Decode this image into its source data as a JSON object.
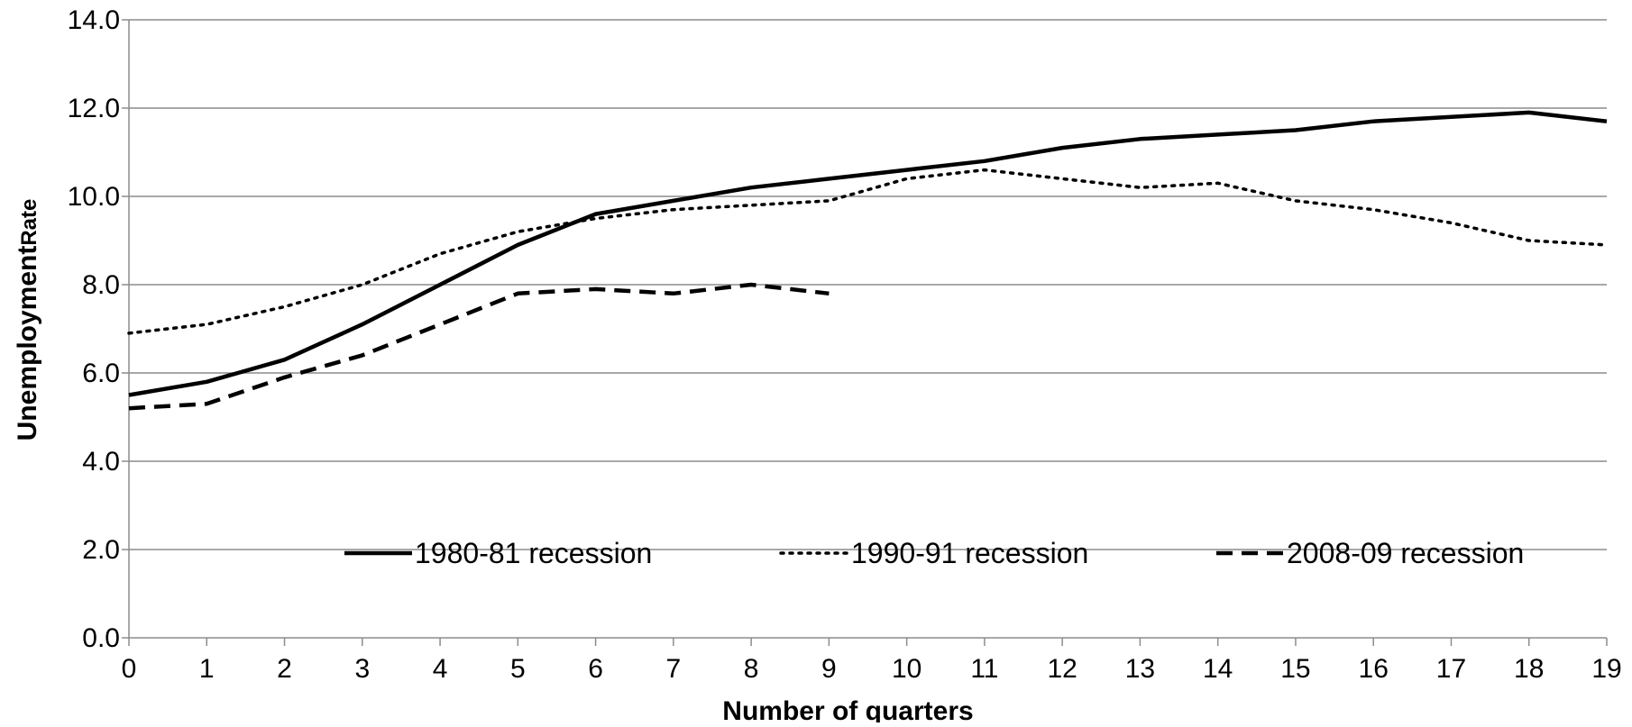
{
  "chart_data": {
    "type": "line",
    "title": "",
    "xlabel": "Number of quarters",
    "ylabel_main": "Unemployment",
    "ylabel_suffix": "Rate",
    "x": [
      0,
      1,
      2,
      3,
      4,
      5,
      6,
      7,
      8,
      9,
      10,
      11,
      12,
      13,
      14,
      15,
      16,
      17,
      18,
      19
    ],
    "ylim": [
      0,
      14
    ],
    "yticks": [
      "0.0",
      "2.0",
      "4.0",
      "6.0",
      "8.0",
      "10.0",
      "12.0",
      "14.0"
    ],
    "xticks": [
      "0",
      "1",
      "2",
      "3",
      "4",
      "5",
      "6",
      "7",
      "8",
      "9",
      "10",
      "11",
      "12",
      "13",
      "14",
      "15",
      "16",
      "17",
      "18",
      "19"
    ],
    "grid": true,
    "legend": "inside-bottom",
    "series": [
      {
        "name": "1980-81 recession",
        "style": "solid",
        "color": "#000000",
        "values": [
          5.5,
          5.8,
          6.3,
          7.1,
          8.0,
          8.9,
          9.6,
          9.9,
          10.2,
          10.4,
          10.6,
          10.8,
          11.1,
          11.3,
          11.4,
          11.5,
          11.7,
          11.8,
          11.9,
          11.7
        ]
      },
      {
        "name": "1990-91 recession",
        "style": "dotted",
        "color": "#000000",
        "values": [
          6.9,
          7.1,
          7.5,
          8.0,
          8.7,
          9.2,
          9.5,
          9.7,
          9.8,
          9.9,
          10.4,
          10.6,
          10.4,
          10.2,
          10.3,
          9.9,
          9.7,
          9.4,
          9.0,
          8.9
        ]
      },
      {
        "name": "2008-09 recession",
        "style": "dashed",
        "color": "#000000",
        "values": [
          5.2,
          5.3,
          5.9,
          6.4,
          7.1,
          7.8,
          7.9,
          7.8,
          8.0,
          7.8,
          null,
          null,
          null,
          null,
          null,
          null,
          null,
          null,
          null,
          null
        ]
      }
    ]
  }
}
